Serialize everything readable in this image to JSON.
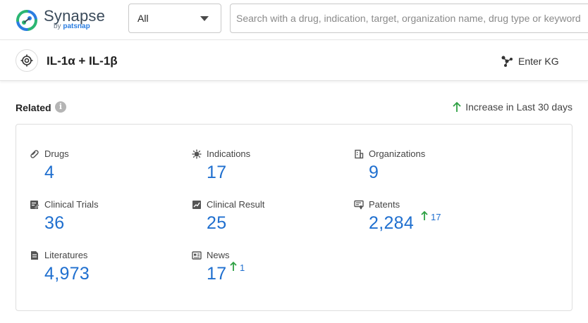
{
  "header": {
    "logo": {
      "name": "Synapse",
      "sub_prefix": "by",
      "sub_brand": "patsnap"
    },
    "scope_select": {
      "value": "All"
    },
    "search": {
      "placeholder": "Search with a drug, indication, target, organization name, drug type or keyword"
    }
  },
  "target": {
    "title": "IL-1α + IL-1β",
    "enter_kg_label": "Enter KG"
  },
  "related": {
    "label": "Related",
    "info": "i",
    "legend_label": "Increase in Last 30 days",
    "stats": [
      {
        "key": "drugs",
        "label": "Drugs",
        "value": "4",
        "increase": ""
      },
      {
        "key": "indications",
        "label": "Indications",
        "value": "17",
        "increase": ""
      },
      {
        "key": "organizations",
        "label": "Organizations",
        "value": "9",
        "increase": ""
      },
      {
        "key": "clinical_trials",
        "label": "Clinical Trials",
        "value": "36",
        "increase": ""
      },
      {
        "key": "clinical_result",
        "label": "Clinical Result",
        "value": "25",
        "increase": ""
      },
      {
        "key": "patents",
        "label": "Patents",
        "value": "2,284",
        "increase": "17"
      },
      {
        "key": "literatures",
        "label": "Literatures",
        "value": "4,973",
        "increase": ""
      },
      {
        "key": "news",
        "label": "News",
        "value": "17",
        "increase": "1"
      }
    ]
  },
  "colors": {
    "brand_green": "#2bb673",
    "brand_blue": "#2a7de1",
    "value_blue": "#1f6fcf",
    "increase_green": "#2ea043"
  }
}
